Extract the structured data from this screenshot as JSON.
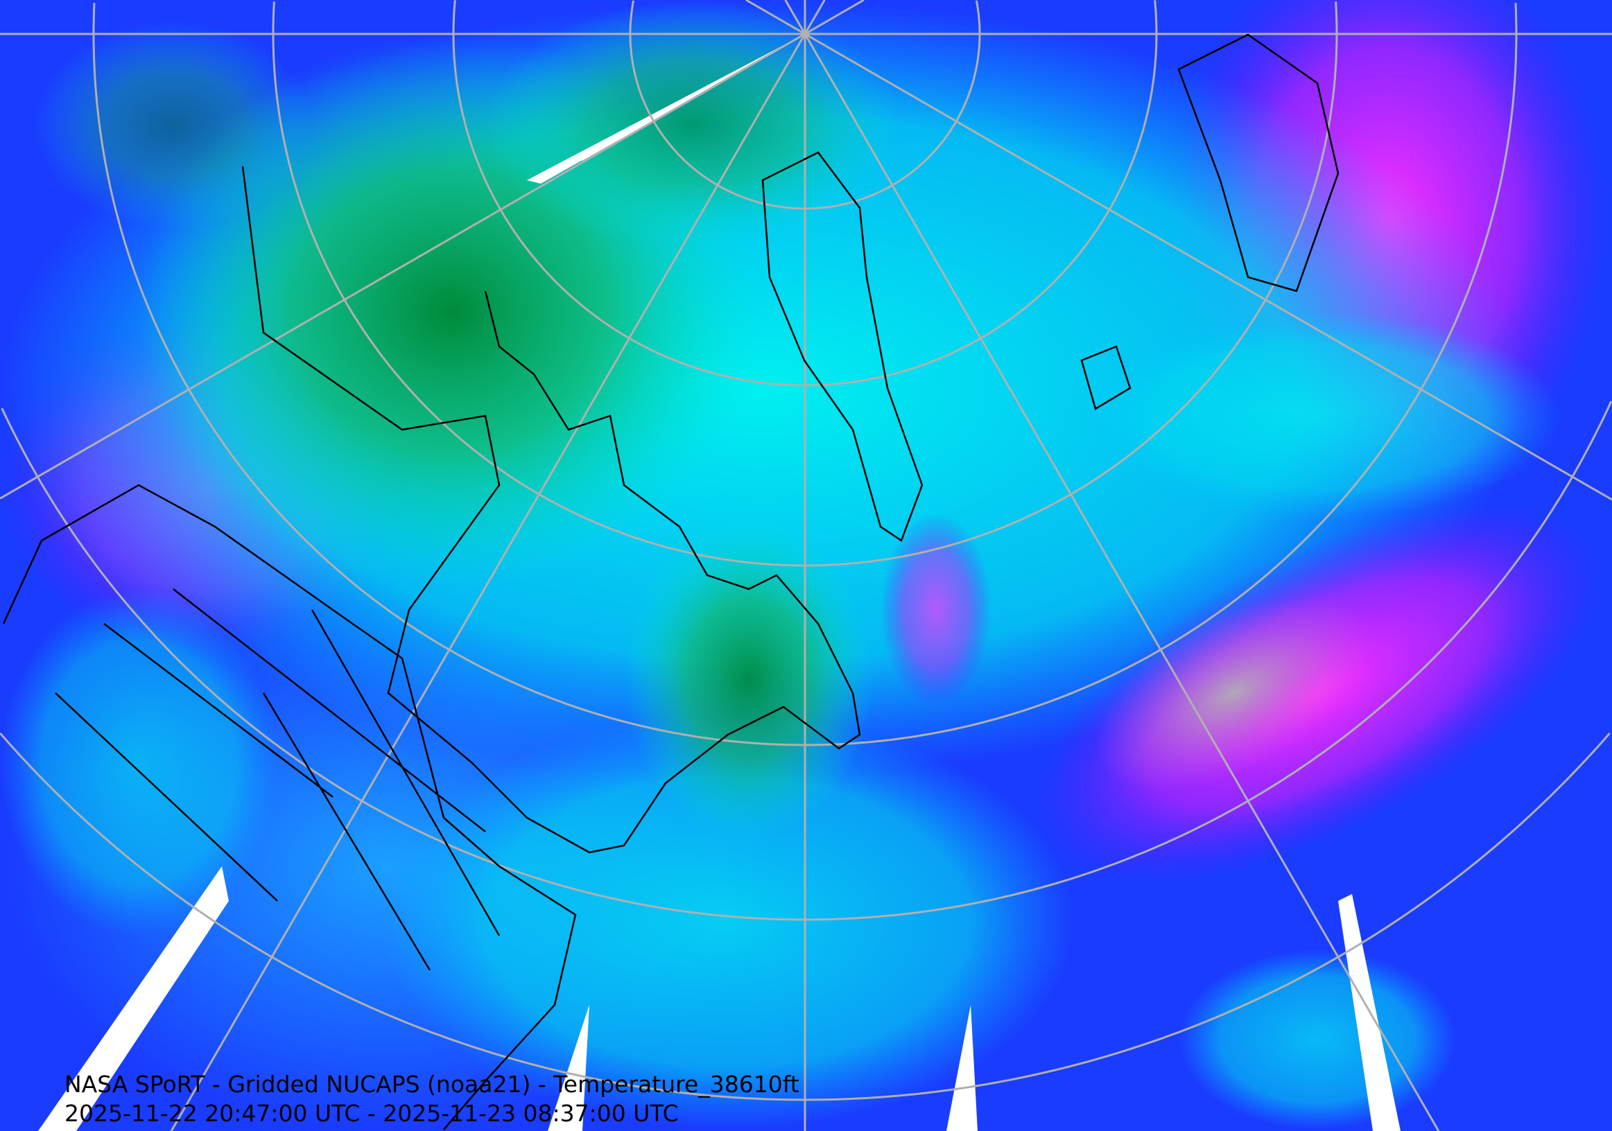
{
  "map": {
    "title": "NASA SPoRT - Gridded NUCAPS (noaa21) - Temperature_38610ft",
    "time_range": "2025-11-22 20:47:00 UTC - 2025-11-23 08:37:00 UTC",
    "projection": "north polar stereographic",
    "graticule_color": "#b0b0b0",
    "coastline_color": "#000000",
    "palette": [
      "#ffffff",
      "#00aa55",
      "#00e0e0",
      "#1a8cff",
      "#1a1aff",
      "#8a1aff",
      "#ff22ff",
      "#aaaaaa"
    ]
  }
}
